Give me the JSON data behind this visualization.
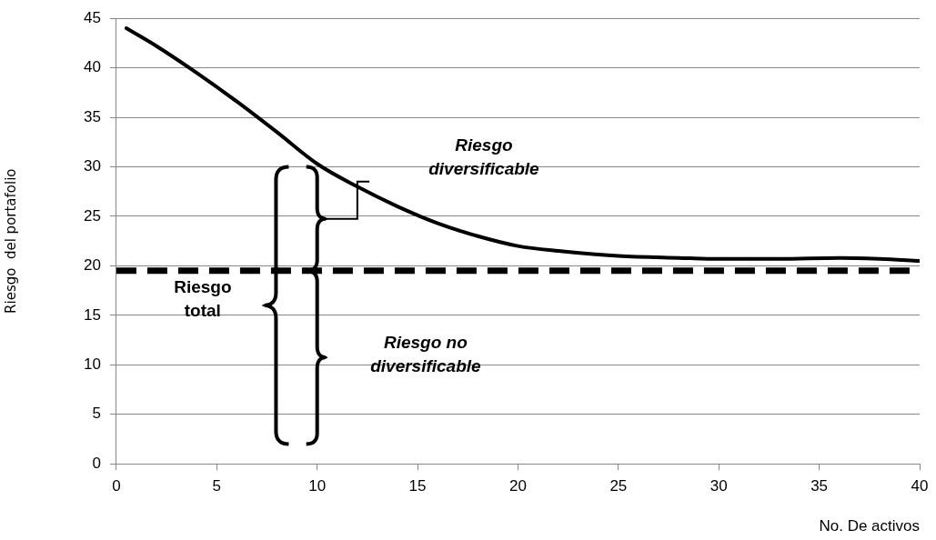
{
  "chart_data": {
    "type": "line",
    "xlabel": "No. De activos",
    "ylabel": "Riesgo  del portafolio",
    "x": [
      0.5,
      2,
      4,
      6,
      8,
      10,
      12,
      14,
      16,
      18,
      20,
      22,
      25,
      28,
      30,
      33,
      36,
      38,
      40
    ],
    "series": [
      {
        "color": "#000000",
        "values": [
          44,
          42.2,
          39.5,
          36.6,
          33.5,
          30.3,
          28,
          26,
          24.3,
          23,
          22,
          21.5,
          21,
          20.8,
          20.7,
          20.7,
          20.8,
          20.7,
          20.5
        ]
      }
    ],
    "xlim": [
      0,
      40
    ],
    "xticks": [
      0,
      5,
      10,
      15,
      20,
      25,
      30,
      35,
      40
    ],
    "ylim": [
      0,
      45
    ],
    "yticks": [
      0,
      5,
      10,
      15,
      20,
      25,
      30,
      35,
      40,
      45
    ],
    "grid": "y",
    "legend": false,
    "marker": "none",
    "line_style": "solid",
    "ref_lines": [
      {
        "axis": "y",
        "value": 19.5,
        "color": "#000000",
        "line_style": "dashed"
      }
    ],
    "annotations": [
      "Riesgo\ndiversificable",
      "Riesgo no\ndiversificable",
      "Riesgo\ntotal"
    ]
  }
}
